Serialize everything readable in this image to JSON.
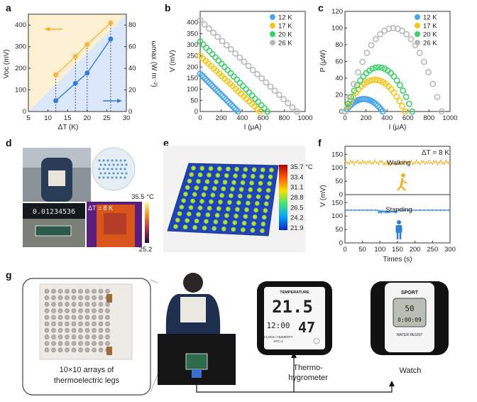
{
  "panels": {
    "a": "a",
    "b": "b",
    "c": "c",
    "d": "d",
    "e": "e",
    "f": "f",
    "g": "g"
  },
  "colors": {
    "c12": "#4aa6e8",
    "c17": "#f5c518",
    "c20": "#3ccf6a",
    "c26": "#b8b8b8",
    "blue": "#2f7fd6",
    "orange": "#f0b12a",
    "voc": "#2f7fd6",
    "omega": "#f5b642"
  },
  "chart_data": [
    {
      "id": "a",
      "type": "line",
      "xlabel": "ΔT (K)",
      "ylabel": "Voc (mV)",
      "y2label": "ωmax (W m⁻²)",
      "xlim": [
        5,
        30
      ],
      "ylim": [
        0,
        450
      ],
      "y2lim": [
        0,
        90
      ],
      "xticks": [
        "5",
        "10",
        "15",
        "20",
        "25",
        "30"
      ],
      "yticks": [
        "0",
        "100",
        "200",
        "300",
        "400"
      ],
      "y2ticks": [
        "0",
        "20",
        "40",
        "60",
        "80"
      ],
      "series": [
        {
          "axis": "left",
          "x": [
            12,
            17,
            20,
            26
          ],
          "y": [
            50,
            130,
            178,
            335
          ]
        },
        {
          "axis": "right",
          "x": [
            12,
            17,
            20,
            26
          ],
          "y": [
            34,
            51,
            62,
            82
          ]
        }
      ]
    },
    {
      "id": "b",
      "type": "scatter",
      "xlabel": "I (μA)",
      "ylabel": "V (mV)",
      "xlim": [
        0,
        1000
      ],
      "ylim": [
        0,
        450
      ],
      "xticks": [
        "0",
        "200",
        "400",
        "600",
        "800",
        "1000"
      ],
      "yticks": [
        "0",
        "50",
        "100",
        "150",
        "200",
        "250",
        "300",
        "350",
        "400"
      ],
      "series": [
        {
          "name": "12 K",
          "isc": 360,
          "voc": 170
        },
        {
          "name": "17 K",
          "isc": 570,
          "voc": 250
        },
        {
          "name": "20 K",
          "isc": 640,
          "voc": 315
        },
        {
          "name": "26 K",
          "isc": 920,
          "voc": 410
        }
      ]
    },
    {
      "id": "c",
      "type": "scatter",
      "xlabel": "I (μA)",
      "ylabel": "P (μW)",
      "xlim": [
        0,
        1000
      ],
      "ylim": [
        0,
        120
      ],
      "xticks": [
        "0",
        "200",
        "400",
        "600",
        "800",
        "1000"
      ],
      "yticks": [
        "0",
        "20",
        "40",
        "60",
        "80",
        "100",
        "120"
      ],
      "series": [
        {
          "name": "12 K",
          "isc": 360,
          "pmax": 15
        },
        {
          "name": "17 K",
          "isc": 570,
          "pmax": 38
        },
        {
          "name": "20 K",
          "isc": 640,
          "pmax": 53
        },
        {
          "name": "26 K",
          "isc": 920,
          "pmax": 100
        }
      ]
    },
    {
      "id": "e",
      "type": "heatmap",
      "colorbar": [
        "35.7 °C",
        "33.4",
        "31.1",
        "28.8",
        "26.5",
        "24.2",
        "21.9"
      ],
      "grid": "10×10"
    },
    {
      "id": "f",
      "type": "line",
      "xlabel": "Times (s)",
      "ylabel": "V (mV)",
      "title": "ΔT = 8 K",
      "xticks": [
        "0",
        "50",
        "100",
        "150",
        "200",
        "250",
        "300"
      ],
      "yticks_top": [
        "0",
        "50",
        "100",
        "150"
      ],
      "yticks_bottom": [
        "0",
        "50",
        "100",
        "150"
      ],
      "top": {
        "label": "Walking",
        "level": 120
      },
      "bottom": {
        "label": "Standing",
        "level": 122
      }
    }
  ],
  "d": {
    "display": "0.01234536",
    "thermo_max": "35.5 °C",
    "thermo_min": "25.2",
    "delta": "ΔT = 8 K"
  },
  "g": {
    "caption_array": "10×10 arrays of\nthermoelectric legs",
    "caption_array_1": "10×10 arrays of",
    "caption_array_2": "thermoelectric legs",
    "thermo_label_1": "Thermo-",
    "thermo_label_2": "hygrometer",
    "watch_label": "Watch",
    "thermo_top": "TEMPERATURE",
    "thermo_temp": "21.5",
    "thermo_hum": "47",
    "thermo_time": "12:00",
    "thermo_foot": "CLOCK / HUMIDITY",
    "thermo_model": "HTC-1",
    "watch_brand": "SPORT",
    "watch_foot": "WATER RESIST",
    "watch_digits": "50",
    "watch_sub": "0:00:09"
  }
}
